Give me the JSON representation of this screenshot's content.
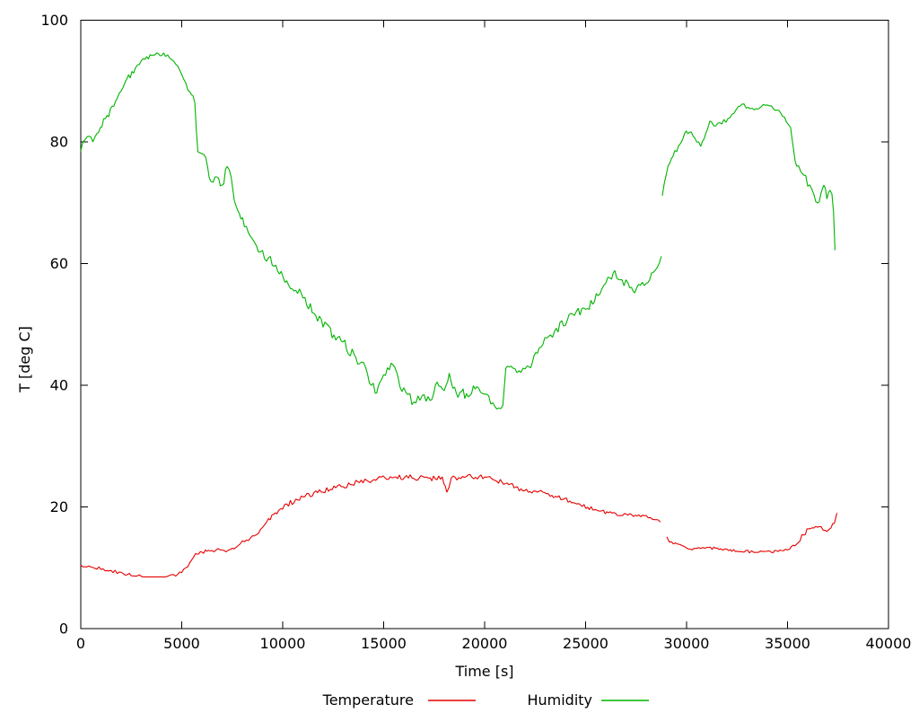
{
  "figure": {
    "background": "#ffffff",
    "border_color": "#000000",
    "text_color": "#000000"
  },
  "chart_data": {
    "type": "line",
    "title": "",
    "xlabel": "Time [s]",
    "ylabel": "T [deg C]",
    "xlim": [
      0,
      40000
    ],
    "ylim": [
      0,
      100
    ],
    "x_ticks": [
      0,
      5000,
      10000,
      15000,
      20000,
      25000,
      30000,
      35000,
      40000
    ],
    "y_ticks": [
      0,
      20,
      40,
      60,
      80,
      100
    ],
    "grid": false,
    "legend_position": "bottom-center",
    "point_format": [
      "time_s",
      "value",
      "noise_scale_optional"
    ],
    "series": [
      {
        "name": "Temperature",
        "color": "#e60000",
        "noise_amplitude": 0.45,
        "segments": [
          [
            [
              0,
              10.4,
              0.6
            ],
            [
              300,
              10.2,
              0.6
            ],
            [
              700,
              10.0,
              0.6
            ],
            [
              1100,
              9.8,
              0.6
            ],
            [
              1500,
              9.5,
              0.6
            ],
            [
              1900,
              9.2,
              0.6
            ],
            [
              2300,
              8.9,
              0.6
            ],
            [
              2700,
              8.7,
              0.6
            ],
            [
              3100,
              8.5,
              0
            ],
            [
              4300,
              8.5,
              0.7
            ],
            [
              4700,
              8.7,
              0.7
            ],
            [
              5000,
              9.3,
              0.7
            ],
            [
              5300,
              10.2,
              0.7
            ],
            [
              5500,
              11.3,
              0.7
            ],
            [
              5680,
              12.3,
              0.8
            ],
            [
              6000,
              12.6,
              0.8
            ],
            [
              6500,
              12.7,
              0.8
            ],
            [
              6900,
              12.9,
              0.8
            ],
            [
              7200,
              12.7,
              0.8
            ],
            [
              7500,
              13.2,
              0.8
            ],
            [
              7900,
              13.8
            ],
            [
              8300,
              14.6
            ],
            [
              8700,
              15.6
            ],
            [
              9000,
              16.8
            ],
            [
              9300,
              18.0
            ],
            [
              9800,
              19.4
            ],
            [
              10200,
              20.4
            ],
            [
              11100,
              21.7
            ],
            [
              12000,
              22.6
            ],
            [
              12900,
              23.4
            ],
            [
              13800,
              24.1
            ],
            [
              14700,
              24.6
            ],
            [
              15600,
              24.9
            ],
            [
              16400,
              24.9
            ],
            [
              17300,
              24.6
            ],
            [
              17900,
              24.8
            ],
            [
              18130,
              22.4
            ],
            [
              18350,
              24.7
            ],
            [
              19100,
              25.1
            ],
            [
              20000,
              24.9
            ],
            [
              20600,
              24.4
            ],
            [
              21200,
              23.6
            ],
            [
              21800,
              22.9
            ],
            [
              22700,
              22.6,
              0.8
            ],
            [
              23600,
              21.7,
              0.8
            ],
            [
              24400,
              20.7,
              0.7
            ],
            [
              25100,
              19.9,
              0.7
            ],
            [
              25800,
              19.3,
              0.7
            ],
            [
              26300,
              18.9,
              0.6
            ],
            [
              27100,
              18.7,
              0.6
            ],
            [
              28000,
              18.5,
              0.6
            ],
            [
              28400,
              17.9,
              0.6
            ],
            [
              28700,
              17.5,
              0.6
            ]
          ],
          [
            [
              29020,
              15.0,
              0.5
            ],
            [
              29150,
              14.3,
              0.5
            ],
            [
              29350,
              14.0,
              0.5
            ],
            [
              29800,
              13.6,
              0.5
            ],
            [
              30200,
              13.0,
              0.5
            ],
            [
              30700,
              13.2,
              0.5
            ],
            [
              31100,
              13.3,
              0.5
            ],
            [
              31600,
              13.1,
              0.5
            ],
            [
              32000,
              13.0,
              0.5
            ],
            [
              32500,
              12.8,
              0.5
            ],
            [
              33300,
              12.6,
              0.5
            ],
            [
              34200,
              12.6,
              0.5
            ],
            [
              34700,
              12.8,
              0.5
            ],
            [
              35100,
              13.0,
              0.6
            ],
            [
              35450,
              13.9,
              0.8
            ],
            [
              35800,
              15.5,
              0.9
            ],
            [
              36050,
              16.5,
              0.9
            ],
            [
              36400,
              16.7,
              0.9
            ],
            [
              36850,
              16.2,
              0.9
            ],
            [
              37150,
              16.7,
              0.9
            ],
            [
              37320,
              17.4,
              1
            ],
            [
              37450,
              19.0
            ]
          ]
        ]
      },
      {
        "name": "Humidity",
        "color": "#00b400",
        "noise_amplitude": 0.8,
        "segments": [
          [
            [
              0,
              78.5,
              0.8
            ],
            [
              150,
              80.2,
              0.8
            ],
            [
              400,
              81.0,
              0.7
            ],
            [
              600,
              80.0,
              0.7
            ],
            [
              800,
              81.5,
              0.7
            ],
            [
              1300,
              84.2,
              0.7
            ],
            [
              1800,
              87.0,
              0.7
            ],
            [
              2200,
              89.7,
              0.7
            ],
            [
              2700,
              92.1,
              0.6
            ],
            [
              3100,
              93.6,
              0.5
            ],
            [
              3600,
              94.3,
              0.4
            ],
            [
              4100,
              94.5,
              0.4
            ],
            [
              4500,
              93.6,
              0.5
            ],
            [
              4800,
              92.5,
              0.5
            ],
            [
              5100,
              90.3,
              0.5
            ],
            [
              5400,
              88.2,
              0.6
            ],
            [
              5650,
              86.6,
              0.6
            ],
            [
              5720,
              82.0,
              0.3
            ],
            [
              5800,
              78.3,
              0.8
            ],
            [
              6100,
              77.8,
              1
            ],
            [
              6450,
              73.6,
              1.1
            ],
            [
              6650,
              74.3,
              1.1
            ],
            [
              7000,
              72.8,
              1.2
            ],
            [
              7250,
              75.8,
              1.2
            ],
            [
              7450,
              73.9,
              1.2
            ],
            [
              7600,
              70.2,
              1.1
            ],
            [
              7850,
              68.4,
              1.1
            ],
            [
              8100,
              66.0,
              1
            ],
            [
              8300,
              65.0,
              1
            ],
            [
              8500,
              64.0,
              1
            ],
            [
              8900,
              61.6,
              1
            ],
            [
              9300,
              61.0,
              1
            ],
            [
              10200,
              57.1,
              1.1
            ],
            [
              11100,
              54.2,
              1.1
            ],
            [
              12000,
              49.8,
              1.1
            ],
            [
              12900,
              47.3,
              1.1
            ],
            [
              13800,
              43.8,
              1.1
            ],
            [
              14200,
              42.0,
              1.1
            ],
            [
              14580,
              38.9,
              1
            ],
            [
              14900,
              41.0,
              1
            ],
            [
              15470,
              43.3,
              1
            ],
            [
              15800,
              40.0,
              1.1
            ],
            [
              16100,
              38.5,
              1.1
            ],
            [
              16500,
              37.3,
              1.1
            ],
            [
              16900,
              38.6,
              1.1
            ],
            [
              17300,
              37.5,
              1.1
            ],
            [
              17650,
              40.6,
              1.1
            ],
            [
              18000,
              38.8,
              1.1
            ],
            [
              18250,
              41.8,
              1.1
            ],
            [
              18600,
              38.8,
              1.1
            ],
            [
              19100,
              38.4,
              1.1
            ],
            [
              19700,
              39.6,
              1
            ],
            [
              20000,
              38.3,
              1
            ],
            [
              20400,
              37.0,
              0.9
            ],
            [
              20700,
              36.4,
              0.8
            ],
            [
              20900,
              36.6,
              0.4
            ],
            [
              21050,
              42.6,
              0.7
            ],
            [
              21400,
              42.6,
              0.7
            ],
            [
              21800,
              42.3,
              0.7
            ],
            [
              22200,
              42.8,
              0.8
            ],
            [
              22700,
              46.3,
              0.9
            ],
            [
              23550,
              49.2,
              0.9
            ],
            [
              24450,
              51.7,
              0.9
            ],
            [
              25000,
              52.7,
              0.9
            ],
            [
              25350,
              53.6,
              0.9
            ],
            [
              25800,
              55.6,
              0.9
            ],
            [
              26200,
              57.6,
              0.9
            ],
            [
              26450,
              58.6,
              0.9
            ],
            [
              26700,
              57.2,
              0.9
            ],
            [
              27100,
              56.6,
              0.9
            ],
            [
              27350,
              55.4,
              0.8
            ],
            [
              27900,
              56.6,
              0.8
            ],
            [
              28450,
              59.1,
              0.7
            ],
            [
              28750,
              61.2,
              0.7
            ]
          ],
          [
            [
              28800,
              71.3,
              0.9
            ],
            [
              29000,
              74.8,
              0.7
            ],
            [
              29330,
              77.8,
              0.6
            ],
            [
              29600,
              79.4,
              0.5
            ],
            [
              29900,
              81.3,
              0.5
            ],
            [
              30150,
              81.7,
              0.5
            ],
            [
              30500,
              80.1,
              0.5
            ],
            [
              30700,
              79.3,
              0.5
            ],
            [
              30950,
              81.5,
              0.5
            ],
            [
              31150,
              83.5,
              0.5
            ],
            [
              31350,
              82.6,
              0.5
            ],
            [
              31650,
              83.0,
              0.5
            ],
            [
              32050,
              83.8,
              0.5
            ],
            [
              32450,
              85.2,
              0.5
            ],
            [
              32750,
              86.2,
              0.4
            ],
            [
              33050,
              85.7,
              0.4
            ],
            [
              33350,
              85.2,
              0.4
            ],
            [
              33800,
              86.2,
              0.4
            ],
            [
              34200,
              85.9,
              0.4
            ],
            [
              34500,
              85.2,
              0.4
            ],
            [
              34750,
              84.2,
              0.5
            ],
            [
              34950,
              83.4,
              0.5
            ],
            [
              35150,
              82.4,
              0.6
            ],
            [
              35300,
              78.5,
              0.8
            ],
            [
              35450,
              76.3,
              1
            ],
            [
              35650,
              75.3,
              1.1
            ],
            [
              35900,
              74.2,
              1.1
            ],
            [
              36100,
              72.9,
              1.2
            ],
            [
              36300,
              71.3,
              1.2
            ],
            [
              36500,
              70.2,
              1.2
            ],
            [
              36650,
              71.4,
              1.2
            ],
            [
              36800,
              73.2,
              1.2
            ],
            [
              36950,
              70.9,
              1.2
            ],
            [
              37100,
              72.2,
              1.2
            ],
            [
              37200,
              71.5,
              1.2
            ],
            [
              37280,
              68.5,
              1.3
            ],
            [
              37350,
              62.2,
              0.5
            ]
          ]
        ]
      }
    ]
  }
}
